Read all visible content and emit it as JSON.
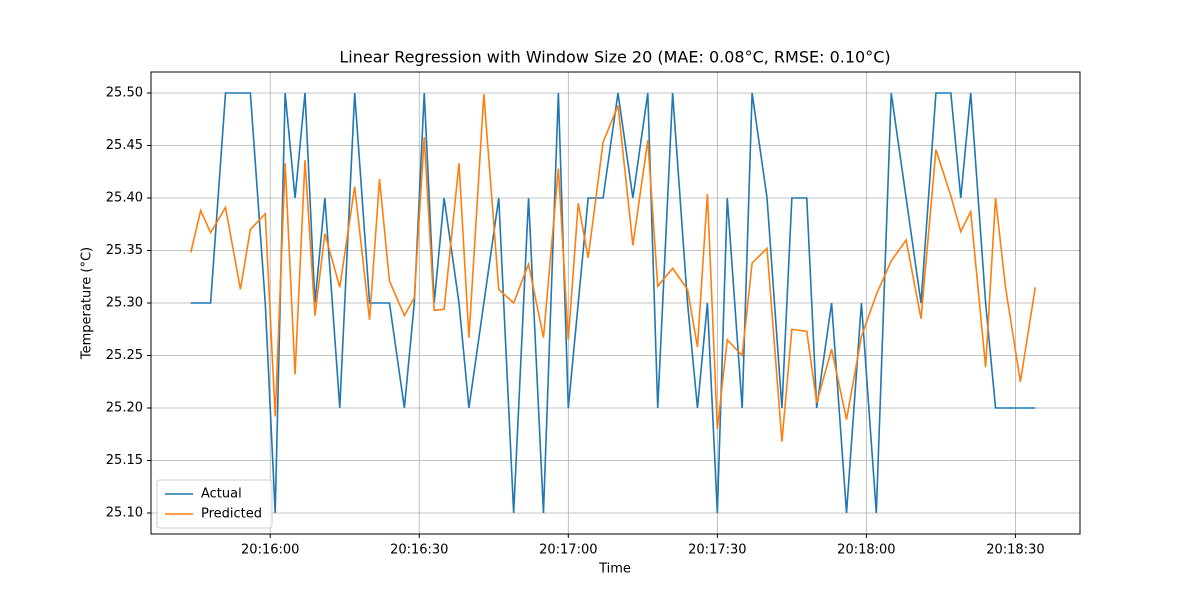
{
  "chart_data": {
    "type": "line",
    "title": "Linear Regression with Window Size 20 (MAE: 0.08°C, RMSE: 0.10°C)",
    "x_label": "Time",
    "y_label": "Temperature (°C)",
    "x": [
      "20:15:44",
      "20:15:46",
      "20:15:48",
      "20:15:51",
      "20:15:54",
      "20:15:56",
      "20:15:59",
      "20:16:01",
      "20:16:03",
      "20:16:05",
      "20:16:07",
      "20:16:09",
      "20:16:11",
      "20:16:14",
      "20:16:17",
      "20:16:20",
      "20:16:22",
      "20:16:24",
      "20:16:27",
      "20:16:29",
      "20:16:31",
      "20:16:33",
      "20:16:35",
      "20:16:38",
      "20:16:40",
      "20:16:43",
      "20:16:46",
      "20:16:49",
      "20:16:52",
      "20:16:55",
      "20:16:58",
      "20:17:00",
      "20:17:02",
      "20:17:04",
      "20:17:07",
      "20:17:10",
      "20:17:13",
      "20:17:16",
      "20:17:18",
      "20:17:21",
      "20:17:24",
      "20:17:26",
      "20:17:28",
      "20:17:30",
      "20:17:32",
      "20:17:35",
      "20:17:37",
      "20:17:40",
      "20:17:43",
      "20:17:45",
      "20:17:48",
      "20:17:50",
      "20:17:53",
      "20:17:56",
      "20:17:59",
      "20:18:02",
      "20:18:05",
      "20:18:08",
      "20:18:11",
      "20:18:14",
      "20:18:17",
      "20:18:19",
      "20:18:21",
      "20:18:24",
      "20:18:26",
      "20:18:28",
      "20:18:31",
      "20:18:34"
    ],
    "series": [
      {
        "name": "Actual",
        "color": "#1f77b4",
        "values": [
          25.3,
          25.3,
          25.3,
          25.5,
          25.5,
          25.5,
          25.3,
          25.1,
          25.5,
          25.4,
          25.5,
          25.3,
          25.4,
          25.2,
          25.5,
          25.3,
          25.3,
          25.3,
          25.2,
          25.3,
          25.5,
          25.3,
          25.4,
          25.3,
          25.2,
          25.3,
          25.4,
          25.1,
          25.4,
          25.1,
          25.5,
          25.2,
          25.3,
          25.4,
          25.4,
          25.5,
          25.4,
          25.5,
          25.2,
          25.5,
          25.3,
          25.2,
          25.3,
          25.1,
          25.4,
          25.2,
          25.5,
          25.4,
          25.2,
          25.4,
          25.4,
          25.2,
          25.3,
          25.1,
          25.3,
          25.1,
          25.5,
          25.4,
          25.3,
          25.5,
          25.5,
          25.4,
          25.5,
          25.3,
          25.2,
          25.2,
          25.2,
          25.2
        ]
      },
      {
        "name": "Predicted",
        "color": "#ff7f0e",
        "values": [
          25.348,
          25.388,
          25.367,
          25.391,
          25.313,
          25.37,
          25.385,
          25.192,
          25.433,
          25.232,
          25.436,
          25.288,
          25.366,
          25.315,
          25.411,
          25.284,
          25.418,
          25.321,
          25.288,
          25.305,
          25.458,
          25.293,
          25.294,
          25.433,
          25.267,
          25.499,
          25.313,
          25.3,
          25.337,
          25.267,
          25.428,
          25.265,
          25.395,
          25.343,
          25.453,
          25.488,
          25.355,
          25.455,
          25.316,
          25.333,
          25.313,
          25.258,
          25.404,
          25.18,
          25.265,
          25.25,
          25.338,
          25.352,
          25.168,
          25.275,
          25.273,
          25.205,
          25.256,
          25.189,
          25.268,
          25.308,
          25.34,
          25.36,
          25.285,
          25.446,
          25.402,
          25.368,
          25.387,
          25.239,
          25.4,
          25.315,
          25.225,
          25.315
        ]
      }
    ],
    "xlim": [
      "20:15:36",
      "20:18:43"
    ],
    "xticks": [
      "20:16:00",
      "20:16:30",
      "20:17:00",
      "20:17:30",
      "20:18:00",
      "20:18:30"
    ],
    "ylim": [
      25.08,
      25.52
    ],
    "yticks": [
      {
        "value": 25.1,
        "label": "25.10"
      },
      {
        "value": 25.15,
        "label": "25.15"
      },
      {
        "value": 25.2,
        "label": "25.20"
      },
      {
        "value": 25.25,
        "label": "25.25"
      },
      {
        "value": 25.3,
        "label": "25.30"
      },
      {
        "value": 25.35,
        "label": "25.35"
      },
      {
        "value": 25.4,
        "label": "25.40"
      },
      {
        "value": 25.45,
        "label": "25.45"
      },
      {
        "value": 25.5,
        "label": "25.50"
      }
    ],
    "grid": true,
    "legend": "lower left"
  }
}
